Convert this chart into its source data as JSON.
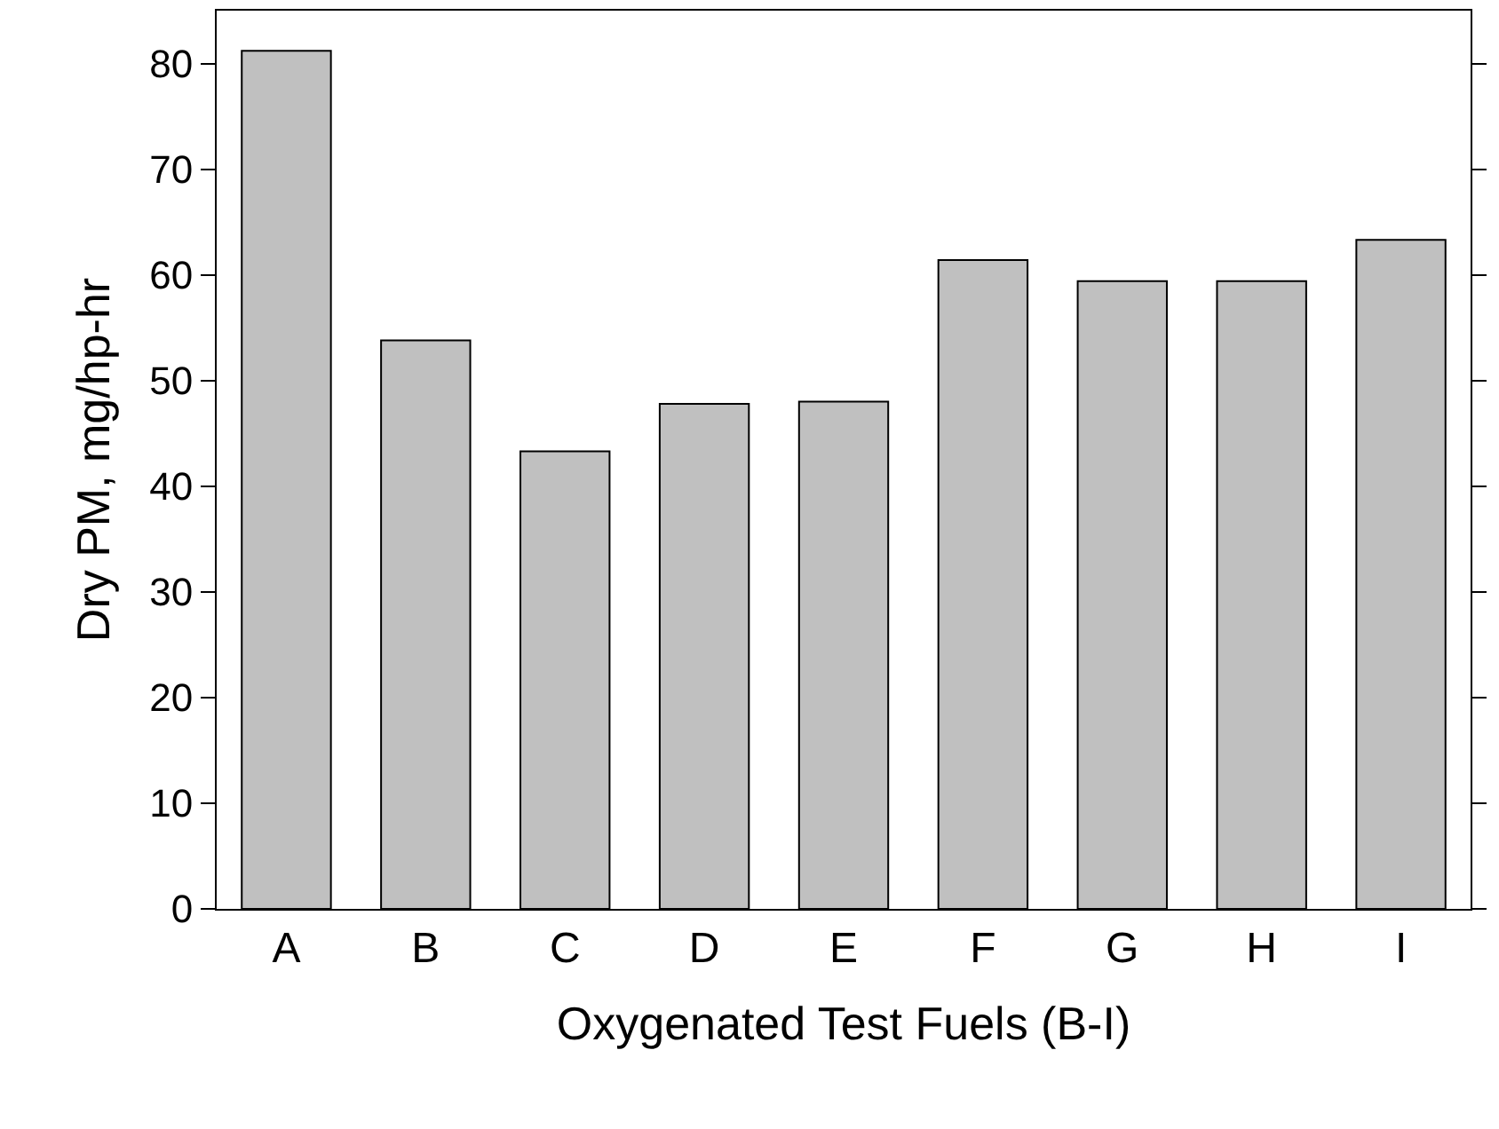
{
  "chart_data": {
    "type": "bar",
    "xlabel": "Oxygenated Test Fuels (B-I)",
    "ylabel": "Dry PM, mg/hp-hr",
    "categories": [
      "A",
      "B",
      "C",
      "D",
      "E",
      "F",
      "G",
      "H",
      "I"
    ],
    "values": [
      81.2,
      53.8,
      43.3,
      47.8,
      48.0,
      61.4,
      59.4,
      59.4,
      63.3
    ],
    "color": "#c0c0c0",
    "ylim": [
      0,
      85
    ],
    "yticks": [
      0,
      10,
      20,
      30,
      40,
      50,
      60,
      70,
      80
    ],
    "grid": false
  }
}
